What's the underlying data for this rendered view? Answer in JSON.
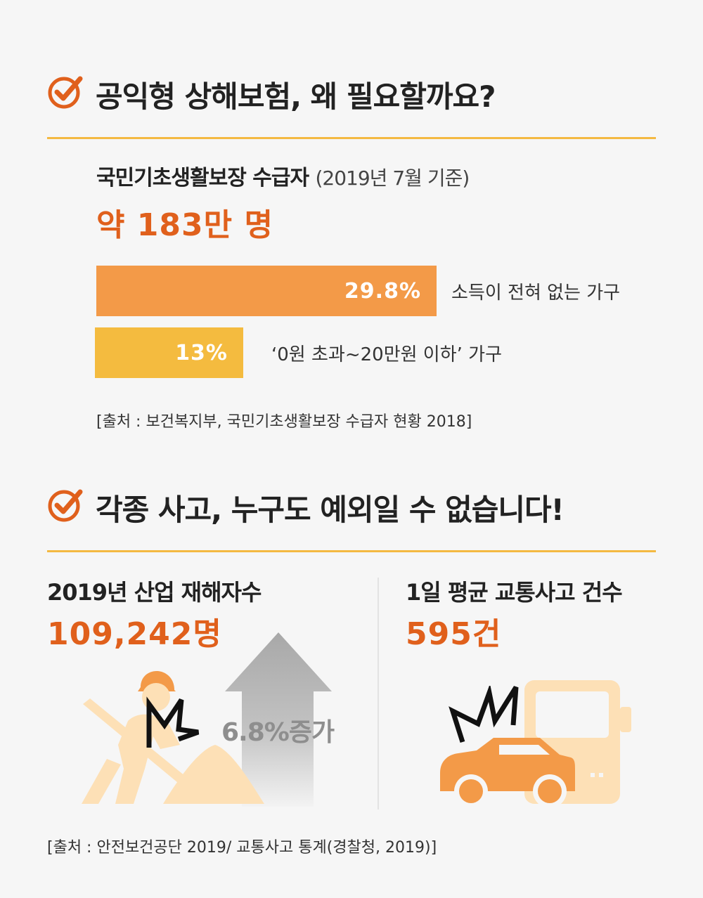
{
  "section1": {
    "heading": "공익형 상해보험, 왜 필요할까요?",
    "subtitle": "국민기초생활보장 수급자",
    "subtitle_note": "(2019년 7월 기준)",
    "total": "약 183만 명",
    "bars": [
      {
        "value": 29.8,
        "label": "29.8%",
        "desc": "소득이 전혀 없는 가구",
        "color": "#f39a48"
      },
      {
        "value": 13,
        "label": "13%",
        "desc": "‘0원 초과~20만원 이하’ 가구",
        "color": "#f4bb3f"
      }
    ],
    "source": "[출처 : 보건복지부, 국민기초생활보장 수급자 현황 2018]"
  },
  "section2": {
    "heading": "각종 사고, 누구도 예외일 수 없습니다!",
    "left": {
      "title": "2019년 산업 재해자수",
      "value": "109,242명",
      "arrow_text": "6.8%증가"
    },
    "right": {
      "title": "1일 평균 교통사고 건수",
      "value": "595건"
    },
    "source": "[출처 : 안전보건공단 2019/ 교통사고 통계(경찰청, 2019)]"
  },
  "colors": {
    "accent": "#e0601c",
    "rule": "#f4b942",
    "bar1": "#f39a48",
    "bar2": "#f4bb3f",
    "illustration_light": "#fde0b6",
    "car": "#f39a48"
  },
  "icons": [
    "check-circle-icon",
    "worker-icon",
    "spark-icon",
    "up-arrow-icon",
    "car-crash-icon",
    "truck-icon"
  ]
}
